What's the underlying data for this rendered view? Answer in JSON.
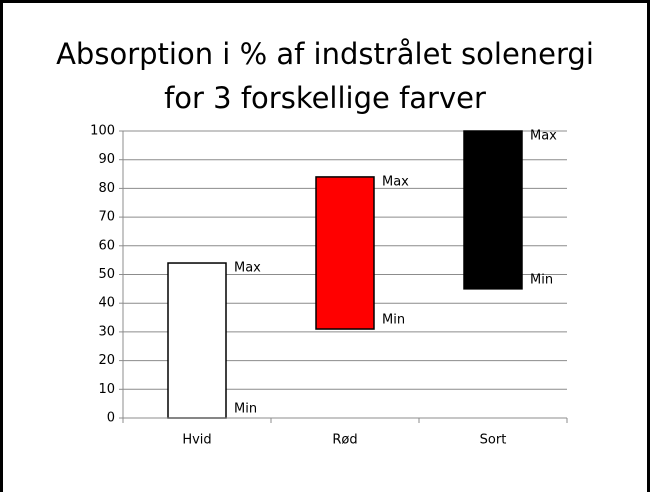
{
  "chart_data": {
    "type": "floating-bar",
    "title": [
      "Absorption i % af indstrålet solenergi",
      "for 3 forskellige farver"
    ],
    "categories": [
      "Hvid",
      "Rød",
      "Sort"
    ],
    "series": [
      {
        "name": "Min",
        "values": [
          0,
          31,
          45
        ]
      },
      {
        "name": "Max",
        "values": [
          54,
          84,
          100
        ]
      }
    ],
    "colors": [
      "#ffffff",
      "#ff0000",
      "#000000"
    ],
    "ylim": [
      0,
      100
    ],
    "yticks": [
      0,
      10,
      20,
      30,
      40,
      50,
      60,
      70,
      80,
      90,
      100
    ],
    "grid": true
  }
}
